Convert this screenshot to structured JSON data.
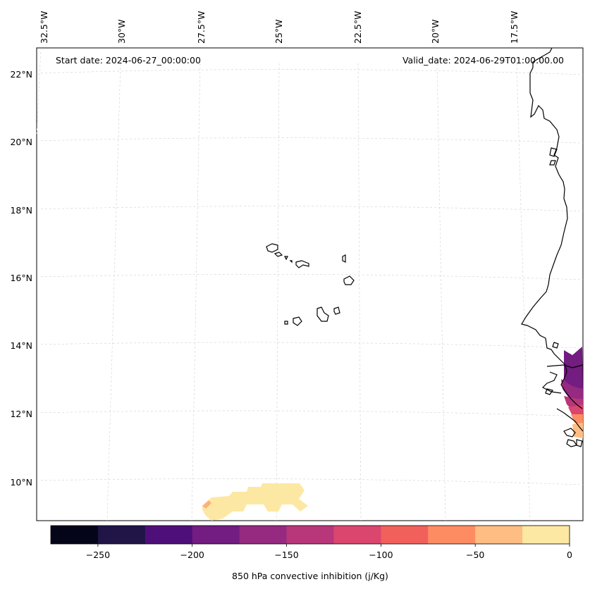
{
  "header": {
    "start_date": "Start date: 2024-06-27_00:00:00",
    "valid_date": "Valid_date: 2024-06-29T01:00:00.00"
  },
  "map": {
    "lon_labels": [
      "32.5°W",
      "30°W",
      "27.5°W",
      "25°W",
      "22.5°W",
      "20°W",
      "17.5°W"
    ],
    "lat_labels": [
      "22°N",
      "20°N",
      "18°N",
      "16°N",
      "14°N",
      "12°N",
      "10°N"
    ],
    "features": [
      "cabo-verde-islands",
      "west-africa-coastline",
      "cin-field-south",
      "cin-field-east"
    ]
  },
  "colorbar": {
    "label": "850 hPa convective inhibition (j/Kg)",
    "tick_labels": [
      "−250",
      "−200",
      "−150",
      "−100",
      "−50",
      "0"
    ],
    "colors": [
      "#05051a",
      "#211447",
      "#4f0f7a",
      "#731c81",
      "#952a80",
      "#b8367a",
      "#da466e",
      "#f2605c",
      "#fd8c63",
      "#febd82",
      "#fde8a3"
    ]
  }
}
